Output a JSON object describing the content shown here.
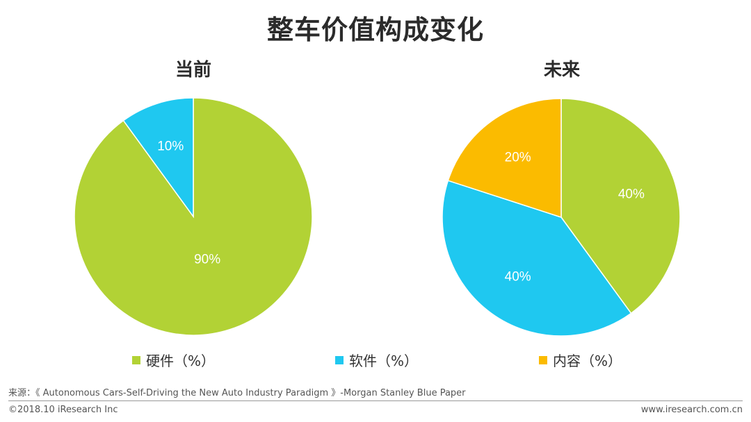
{
  "title": "整车价值构成变化",
  "colors": {
    "hardware": "#b2d235",
    "software": "#1fc8f0",
    "content": "#fbbb00"
  },
  "chart_data": [
    {
      "type": "pie",
      "title": "当前",
      "slices": [
        {
          "label": "硬件（%）",
          "key": "hardware",
          "value": 90,
          "display": "90%"
        },
        {
          "label": "软件（%）",
          "key": "software",
          "value": 10,
          "display": "10%"
        }
      ]
    },
    {
      "type": "pie",
      "title": "未来",
      "slices": [
        {
          "label": "硬件（%）",
          "key": "hardware",
          "value": 40,
          "display": "40%"
        },
        {
          "label": "软件（%）",
          "key": "software",
          "value": 40,
          "display": "40%"
        },
        {
          "label": "内容（%）",
          "key": "content",
          "value": 20,
          "display": "20%"
        }
      ]
    }
  ],
  "legend": [
    {
      "key": "hardware",
      "label": "硬件（%）"
    },
    {
      "key": "software",
      "label": "软件（%）"
    },
    {
      "key": "content",
      "label": "内容（%）"
    }
  ],
  "source": "来源：《 Autonomous Cars-Self-Driving the New Auto Industry Paradigm 》-Morgan Stanley Blue Paper",
  "footer": {
    "copyright": "©2018.10 iResearch Inc",
    "website": "www.iresearch.com.cn"
  }
}
